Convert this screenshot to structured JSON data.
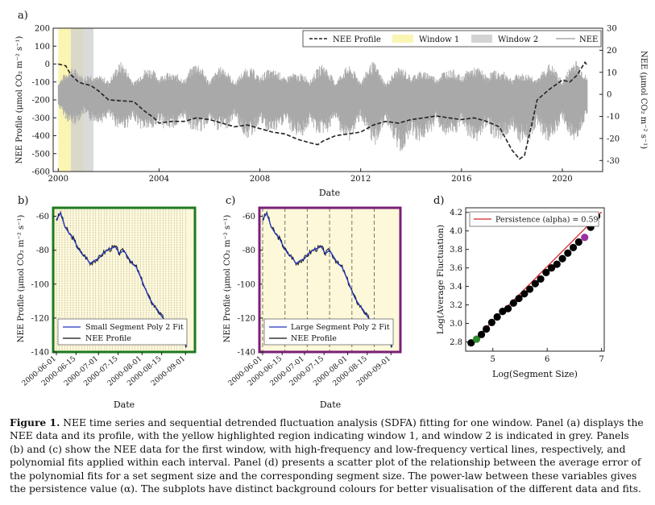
{
  "figure_caption": {
    "label": "Figure 1.",
    "text": "NEE time series and sequential detrended fluctuation analysis (SDFA) fitting for one window. Panel (a) displays the NEE data and its profile, with the yellow highlighted region indicating window 1, and window 2 is indicated in grey. Panels (b) and (c) show the NEE data for the first window, with high-frequency and low-frequency vertical lines, respectively, and polynomial fits applied within each interval. Panel (d) presents a scatter plot of the relationship between the average error of the polynomial fits for a set segment size and the corresponding segment size. The power-law between these variables gives the persistence value (α). The subplots have distinct background colours for better visualisation of the different data and fits."
  },
  "colors": {
    "window1": "#fbf5b3",
    "window2": "#cfcfcf",
    "nee_raw": "#a9a9a9",
    "profile": "#222222",
    "poly_fit": "#2233bb",
    "panel_b_frame": "#1f7a1f",
    "panel_c_frame": "#7a1f7a",
    "panel_bg": "#fdf8d9",
    "fit_line": "#d62728",
    "scatter": "#000000",
    "highlight_green": "#2e8b2e",
    "highlight_purple": "#9b30a0"
  },
  "chart_data": [
    {
      "panel": "a)",
      "type": "line",
      "xlabel": "Date",
      "ylabel_left": "NEE Profile (μmol CO₂ m⁻² s⁻¹)",
      "ylabel_right": "NEE (μmol CO₂ m⁻² s⁻¹)",
      "xlim": [
        1999.8,
        2021.6
      ],
      "ylim_left": [
        -600,
        200
      ],
      "ylim_right": [
        -35,
        30
      ],
      "x_ticks": [
        2000,
        2004,
        2008,
        2012,
        2016,
        2020
      ],
      "y_ticks_left": [
        -600,
        -500,
        -400,
        -300,
        -200,
        -100,
        0,
        100,
        200
      ],
      "y_ticks_right": [
        -30,
        -20,
        -10,
        0,
        10,
        20,
        30
      ],
      "legend": [
        "NEE Profile",
        "Window 1",
        "Window 2",
        "NEE"
      ],
      "legend_position": "top-right",
      "window1": [
        2000.0,
        2001.0
      ],
      "window2": [
        2000.5,
        2001.4
      ],
      "nee_envelope": {
        "x": [
          2000,
          2000.5,
          2001,
          2001.5,
          2002,
          2002.5,
          2003,
          2003.5,
          2004,
          2004.5,
          2005,
          2005.5,
          2006,
          2006.5,
          2007,
          2007.5,
          2008,
          2008.5,
          2009,
          2009.5,
          2010,
          2010.5,
          2011,
          2011.5,
          2012,
          2012.5,
          2013,
          2013.5,
          2014,
          2014.5,
          2015,
          2015.5,
          2016,
          2016.5,
          2017,
          2017.5,
          2018,
          2018.5,
          2019,
          2019.5,
          2020,
          2020.5,
          2021
        ],
        "upper": [
          10,
          12,
          14,
          8,
          11,
          15,
          10,
          12,
          14,
          9,
          12,
          15,
          11,
          13,
          10,
          12,
          14,
          11,
          13,
          9,
          12,
          14,
          10,
          13,
          11,
          15,
          9,
          12,
          14,
          10,
          13,
          11,
          14,
          12,
          15,
          10,
          13,
          9,
          12,
          14,
          11,
          16,
          13
        ],
        "lower": [
          -10,
          -14,
          -16,
          -12,
          -18,
          -15,
          -20,
          -16,
          -22,
          -15,
          -19,
          -17,
          -21,
          -16,
          -18,
          -20,
          -22,
          -17,
          -21,
          -19,
          -23,
          -18,
          -20,
          -22,
          -19,
          -24,
          -21,
          -26,
          -30,
          -20,
          -22,
          -19,
          -24,
          -21,
          -25,
          -20,
          -26,
          -22,
          -24,
          -21,
          -20,
          -22,
          -15
        ]
      },
      "nee_profile": {
        "x": [
          2000.0,
          2000.3,
          2000.5,
          2000.8,
          2001.0,
          2001.3,
          2001.6,
          2002.0,
          2002.5,
          2003.0,
          2003.4,
          2003.8,
          2004.0,
          2004.5,
          2005.0,
          2005.5,
          2006.0,
          2006.5,
          2007.0,
          2007.5,
          2008.0,
          2008.5,
          2009.0,
          2009.5,
          2010.0,
          2010.3,
          2010.5,
          2011.0,
          2011.5,
          2012.0,
          2012.5,
          2013.0,
          2013.5,
          2014.0,
          2014.5,
          2015.0,
          2015.5,
          2016.0,
          2016.5,
          2017.0,
          2017.5,
          2018.0,
          2018.3,
          2018.5,
          2018.8,
          2019.0,
          2019.5,
          2020.0,
          2020.3,
          2020.6,
          2020.9,
          2021.0
        ],
        "y": [
          0,
          -10,
          -60,
          -100,
          -110,
          -120,
          -150,
          -200,
          -205,
          -210,
          -260,
          -300,
          -330,
          -320,
          -320,
          -300,
          -310,
          -330,
          -350,
          -340,
          -360,
          -380,
          -390,
          -420,
          -440,
          -450,
          -430,
          -400,
          -390,
          -380,
          -340,
          -320,
          -330,
          -310,
          -300,
          -290,
          -300,
          -310,
          -300,
          -320,
          -350,
          -480,
          -530,
          -510,
          -330,
          -200,
          -140,
          -90,
          -100,
          -60,
          10,
          -10
        ]
      }
    },
    {
      "panel": "b)",
      "type": "line",
      "xlabel": "Date",
      "ylabel": "NEE Profile (μmol CO₂ m⁻² s⁻¹)",
      "x_ticks": [
        "2000-06-01",
        "2000-06-15",
        "2000-07-01",
        "2000-07-15",
        "2000-08-01",
        "2000-08-15",
        "2000-09-01"
      ],
      "ylim": [
        -140,
        -55
      ],
      "y_ticks": [
        -140,
        -120,
        -100,
        -80,
        -60
      ],
      "legend": [
        "Small Segment Poly 2 Fit",
        "NEE Profile"
      ],
      "legend_position": "lower-left",
      "x_days": [
        0,
        3,
        6,
        9,
        12,
        15,
        18,
        21,
        24,
        27,
        30,
        33,
        36,
        39,
        42,
        45,
        48,
        51,
        54,
        57,
        60,
        63,
        66,
        69,
        72,
        75,
        78,
        81,
        84,
        87,
        90,
        93
      ],
      "profile": [
        -62,
        -58,
        -66,
        -70,
        -73,
        -78,
        -82,
        -84,
        -88,
        -86,
        -85,
        -82,
        -80,
        -79,
        -78,
        -82,
        -80,
        -84,
        -88,
        -90,
        -96,
        -102,
        -108,
        -112,
        -115,
        -119,
        -122,
        -126,
        -128,
        -130,
        -133,
        -137
      ]
    },
    {
      "panel": "c)",
      "type": "line",
      "xlabel": "Date",
      "ylabel": "NEE Profile (μmol CO₂ m⁻² s⁻¹)",
      "x_ticks": [
        "2000-06-01",
        "2000-06-15",
        "2000-07-01",
        "2000-07-15",
        "2000-08-01",
        "2000-08-15",
        "2000-09-01"
      ],
      "ylim": [
        -140,
        -55
      ],
      "y_ticks": [
        -140,
        -120,
        -100,
        -80,
        -60
      ],
      "legend": [
        "Large Segment Poly 2 Fit",
        "NEE Profile"
      ],
      "legend_position": "lower-left",
      "x_days": [
        0,
        3,
        6,
        9,
        12,
        15,
        18,
        21,
        24,
        27,
        30,
        33,
        36,
        39,
        42,
        45,
        48,
        51,
        54,
        57,
        60,
        63,
        66,
        69,
        72,
        75,
        78,
        81,
        84,
        87,
        90,
        93
      ],
      "profile": [
        -62,
        -58,
        -66,
        -70,
        -73,
        -78,
        -82,
        -84,
        -88,
        -86,
        -85,
        -82,
        -80,
        -79,
        -78,
        -82,
        -80,
        -84,
        -88,
        -90,
        -96,
        -102,
        -108,
        -112,
        -115,
        -119,
        -122,
        -126,
        -128,
        -130,
        -133,
        -137
      ],
      "segment_boundaries_days": [
        0,
        16,
        32,
        48,
        64,
        80
      ]
    },
    {
      "panel": "d)",
      "type": "scatter",
      "xlabel": "Log(Segment Size)",
      "ylabel": "Log(Average Fluctuation)",
      "xlim": [
        4.5,
        7.05
      ],
      "ylim": [
        2.7,
        4.25
      ],
      "x_ticks": [
        5,
        6,
        7
      ],
      "y_ticks": [
        2.8,
        3.0,
        3.2,
        3.4,
        3.6,
        3.8,
        4.0,
        4.2
      ],
      "legend": [
        "Persistence (alpha) = 0.59"
      ],
      "legend_position": "top-left",
      "x": [
        4.6,
        4.7,
        4.79,
        4.88,
        4.98,
        5.08,
        5.18,
        5.28,
        5.38,
        5.48,
        5.58,
        5.68,
        5.78,
        5.88,
        5.98,
        6.08,
        6.18,
        6.28,
        6.38,
        6.48,
        6.58,
        6.69,
        6.8,
        6.91
      ],
      "y": [
        2.79,
        2.83,
        2.88,
        2.94,
        3.01,
        3.07,
        3.13,
        3.16,
        3.22,
        3.27,
        3.32,
        3.37,
        3.43,
        3.48,
        3.55,
        3.6,
        3.64,
        3.7,
        3.76,
        3.82,
        3.88,
        3.93,
        4.04,
        4.16
      ],
      "highlight_indices": [
        1,
        21
      ],
      "fit_slope": 0.59,
      "fit_intercept": 0.075
    }
  ]
}
